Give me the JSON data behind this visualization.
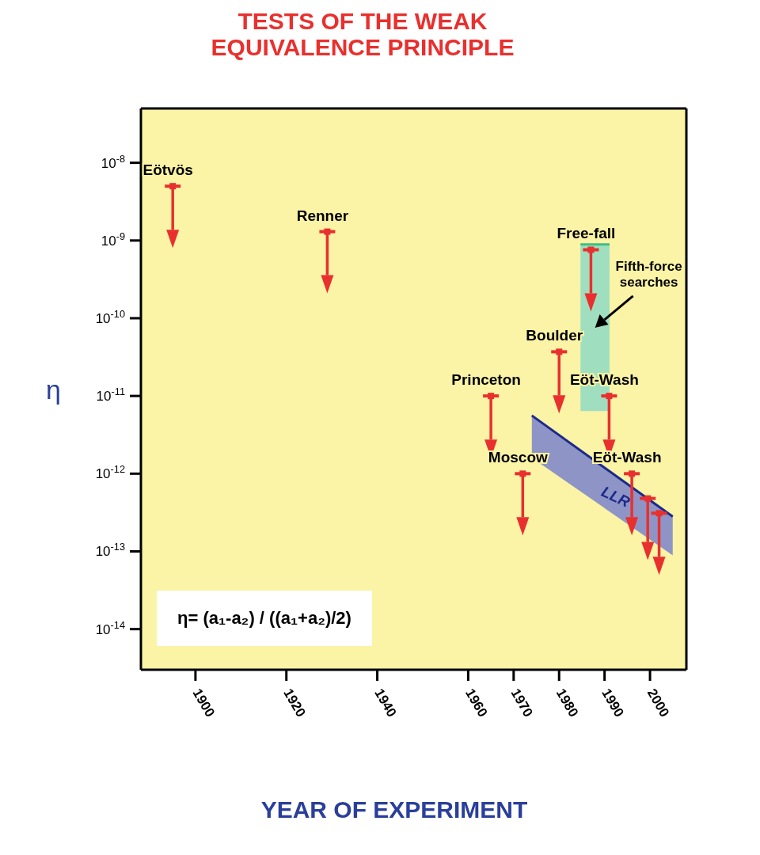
{
  "chart_data": {
    "type": "scatter",
    "title": "TESTS OF THE WEAK EQUIVALENCE PRINCIPLE",
    "xlabel": "YEAR OF EXPERIMENT",
    "ylabel": "η",
    "log": true,
    "xlim": [
      1888,
      2008
    ],
    "xticks": [
      1900,
      1920,
      1940,
      1960,
      1970,
      1980,
      1990,
      2000
    ],
    "ylim": [
      3e-15,
      5e-08
    ],
    "yticks": [
      {
        "value": 1e-08,
        "label": "10$^{-8}$"
      },
      {
        "value": 1e-09,
        "label": "10$^{-9}$"
      },
      {
        "value": 1e-10,
        "label": "10$^{-10}$"
      },
      {
        "value": 1e-11,
        "label": "10$^{-11}$"
      },
      {
        "value": 1e-12,
        "label": "10$^{-12}$"
      },
      {
        "value": 1e-13,
        "label": "10$^{-13}$"
      },
      {
        "value": 1e-14,
        "label": "10$^{-14}$"
      }
    ],
    "series": [
      {
        "type": "line",
        "color": "#3fbf80",
        "x": [
          1984.7,
          1991.1
        ],
        "values": [
          8.9e-10,
          8.9e-10
        ],
        "upper": [
          8.9e-10,
          8.9e-10
        ],
        "lower": [
          6.4e-12,
          6.4e-12
        ]
      },
      {
        "type": "line",
        "color": "#1c2a8c",
        "x": [
          1974,
          2005
        ],
        "values": [
          5.6e-12,
          2.8e-13
        ],
        "upper": [
          5.6e-12,
          2.8e-13
        ],
        "lower": [
          1.6e-12,
          8.9e-14
        ]
      },
      {
        "marker": "square",
        "color": "#e8302e",
        "x": [
          1895,
          1929,
          1965,
          1972,
          1980,
          1987,
          1991,
          1996,
          1999.5,
          2002
        ],
        "values": [
          5e-09,
          1.3e-09,
          1e-11,
          1e-12,
          3.7e-11,
          7.6e-10,
          1e-11,
          1e-12,
          4.8e-13,
          3.1e-13
        ]
      }
    ],
    "annotations": [
      {
        "text": "Eötvös",
        "x": 1895,
        "y": 5e-09
      },
      {
        "text": "Renner",
        "x": 1929,
        "y": 1.3e-09
      },
      {
        "text": "Princeton",
        "x": 1965,
        "y": 1e-11
      },
      {
        "text": "Moscow",
        "x": 1972,
        "y": 1e-12
      },
      {
        "text": "Boulder",
        "x": 1980,
        "y": 3.7e-11
      },
      {
        "text": "Free-fall",
        "x": 1987,
        "y": 7.6e-10
      },
      {
        "text": "Eöt-Wash",
        "x": 1991,
        "y": 1e-11
      },
      {
        "text": "Eöt-Wash",
        "x": 1996,
        "y": 1e-12
      },
      {
        "text": "LLR",
        "x": 1993,
        "y": 8.9e-13
      },
      "Fifth-force searches",
      "η= (a₁-a₂) / ((a₁+a₂)/2)"
    ]
  }
}
